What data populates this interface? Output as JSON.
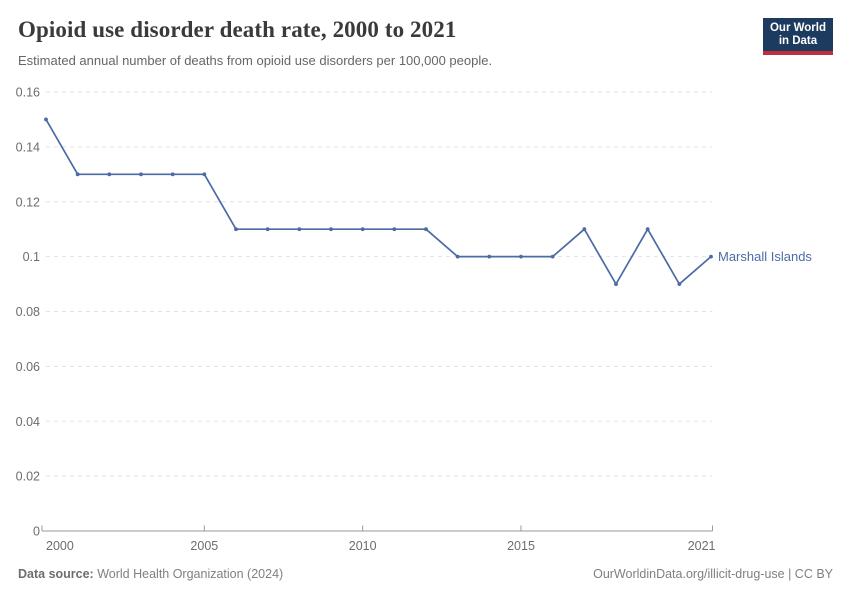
{
  "header": {
    "title": "Opioid use disorder death rate, 2000 to 2021",
    "subtitle": "Estimated annual number of deaths from opioid use disorders per 100,000 people.",
    "logo": {
      "line1": "Our World",
      "line2": "in Data",
      "bg_color": "#1d3a5f",
      "accent_color": "#bf2e3f"
    }
  },
  "chart_data": {
    "type": "line",
    "title": "Opioid use disorder death rate, 2000 to 2021",
    "xlabel": "",
    "ylabel": "",
    "xlim": [
      2000,
      2021
    ],
    "ylim": [
      0,
      0.16
    ],
    "x_ticks": [
      2000,
      2005,
      2010,
      2015,
      2021
    ],
    "y_ticks": [
      0,
      0.02,
      0.04,
      0.06,
      0.08,
      0.1,
      0.12,
      0.14,
      0.16
    ],
    "grid": "horizontal-dashed",
    "legend_position": "end-of-line-label",
    "series": [
      {
        "name": "Marshall Islands",
        "color": "#4c6ba5",
        "x": [
          2000,
          2001,
          2002,
          2003,
          2004,
          2005,
          2006,
          2007,
          2008,
          2009,
          2010,
          2011,
          2012,
          2013,
          2014,
          2015,
          2016,
          2017,
          2018,
          2019,
          2020,
          2021
        ],
        "values": [
          0.15,
          0.13,
          0.13,
          0.13,
          0.13,
          0.13,
          0.11,
          0.11,
          0.11,
          0.11,
          0.11,
          0.11,
          0.11,
          0.1,
          0.1,
          0.1,
          0.1,
          0.11,
          0.09,
          0.11,
          0.09,
          0.1
        ]
      }
    ]
  },
  "footer": {
    "datasource_label": "Data source:",
    "datasource": "World Health Organization (2024)",
    "link": "OurWorldinData.org/illicit-drug-use | CC BY"
  }
}
